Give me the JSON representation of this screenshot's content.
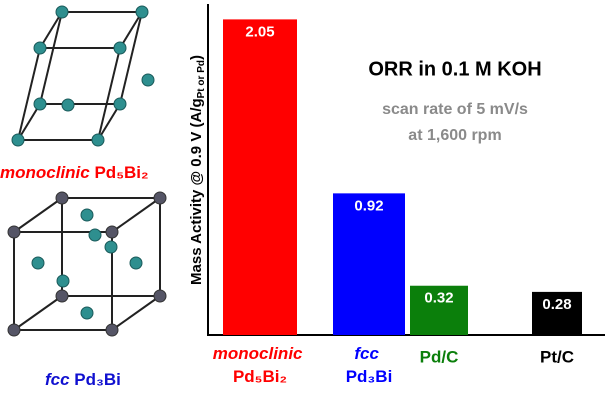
{
  "chart_data": {
    "type": "bar",
    "categories": [
      "monoclinic Pd₅Bi₂",
      "fcc Pd₃Bi",
      "Pd/C",
      "Pt/C"
    ],
    "values": [
      2.05,
      0.92,
      0.32,
      0.28
    ],
    "colors": [
      "#ff0000",
      "#0000ff",
      "#0b7f0b",
      "#000000"
    ],
    "ylim": [
      0,
      2.15
    ],
    "y_label": "Mass Activity @ 0.9 V (A/g",
    "y_label_subscript": "Pt or Pd",
    "y_label_end": ")",
    "title": "ORR in 0.1 M KOH",
    "annotations": [
      "scan rate of 5 mV/s",
      "at 1,600 rpm"
    ]
  },
  "structures": [
    {
      "label": "monoclinic Pd₅Bi₂",
      "color": "#ff0000"
    },
    {
      "label": "fcc Pd₃Bi",
      "color": "#1010d0"
    }
  ]
}
